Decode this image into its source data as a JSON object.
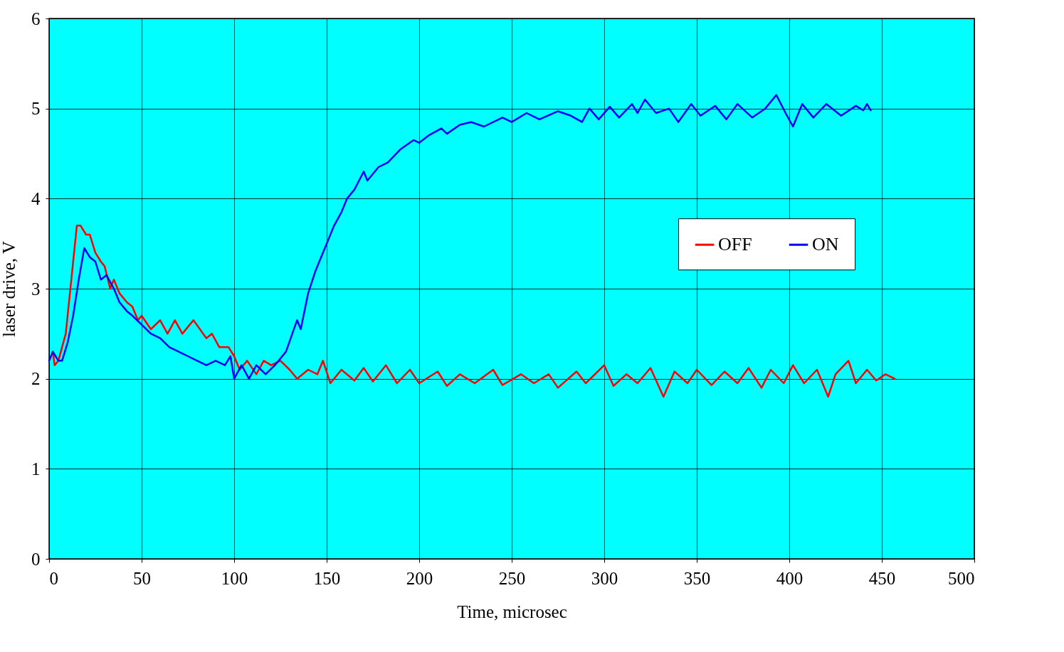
{
  "chart_data": {
    "type": "line",
    "xlabel": "Time, microsec",
    "ylabel": "laser drive, V",
    "xlim": [
      0,
      500
    ],
    "xticks": [
      0,
      50,
      100,
      150,
      200,
      250,
      300,
      350,
      400,
      450,
      500
    ],
    "ylim": [
      0,
      6
    ],
    "yticks": [
      0,
      1,
      2,
      3,
      4,
      5,
      6
    ],
    "grid": true,
    "legend": "right",
    "marker": "none",
    "line_style": "solid",
    "series": [
      {
        "name": "OFF",
        "color": "#ff0000",
        "x": [
          2,
          3,
          5,
          9,
          11,
          13,
          15,
          17,
          20,
          22,
          25,
          28,
          30,
          33,
          35,
          38,
          42,
          45,
          48,
          50,
          55,
          60,
          64,
          68,
          72,
          78,
          85,
          88,
          92,
          97,
          100,
          103,
          107,
          112,
          116,
          120,
          125,
          130,
          134,
          140,
          145,
          148,
          152,
          158,
          165,
          170,
          175,
          182,
          188,
          195,
          200,
          210,
          215,
          222,
          230,
          240,
          245,
          255,
          262,
          270,
          275,
          285,
          290,
          300,
          305,
          312,
          318,
          325,
          332,
          338,
          345,
          350,
          358,
          365,
          372,
          378,
          385,
          390,
          397,
          402,
          408,
          415,
          421,
          425,
          432,
          436,
          442,
          447,
          452,
          457
        ],
        "values": [
          2.3,
          2.15,
          2.2,
          2.5,
          2.9,
          3.3,
          3.7,
          3.7,
          3.6,
          3.6,
          3.4,
          3.3,
          3.25,
          3.0,
          3.1,
          2.95,
          2.85,
          2.8,
          2.65,
          2.7,
          2.55,
          2.65,
          2.5,
          2.65,
          2.5,
          2.65,
          2.45,
          2.5,
          2.35,
          2.35,
          2.25,
          2.1,
          2.2,
          2.05,
          2.2,
          2.15,
          2.2,
          2.1,
          2.0,
          2.1,
          2.05,
          2.2,
          1.95,
          2.1,
          1.98,
          2.12,
          1.97,
          2.15,
          1.95,
          2.1,
          1.95,
          2.08,
          1.92,
          2.05,
          1.95,
          2.1,
          1.93,
          2.05,
          1.95,
          2.05,
          1.9,
          2.08,
          1.95,
          2.15,
          1.92,
          2.05,
          1.95,
          2.12,
          1.8,
          2.08,
          1.95,
          2.1,
          1.93,
          2.08,
          1.95,
          2.12,
          1.9,
          2.1,
          1.95,
          2.15,
          1.95,
          2.1,
          1.8,
          2.05,
          2.2,
          1.95,
          2.1,
          1.98,
          2.05,
          2.0
        ]
      },
      {
        "name": "ON",
        "color": "#0000ff",
        "x": [
          0,
          2,
          5,
          7,
          10,
          13,
          16,
          19,
          22,
          25,
          28,
          31,
          35,
          38,
          42,
          45,
          50,
          55,
          60,
          65,
          70,
          75,
          80,
          85,
          90,
          95,
          98,
          100,
          104,
          108,
          112,
          117,
          122,
          128,
          134,
          136,
          140,
          144,
          146,
          150,
          154,
          158,
          161,
          165,
          170,
          172,
          178,
          183,
          190,
          197,
          200,
          205,
          212,
          215,
          222,
          228,
          235,
          245,
          250,
          258,
          265,
          275,
          282,
          288,
          292,
          297,
          303,
          308,
          315,
          318,
          322,
          328,
          335,
          340,
          347,
          352,
          360,
          366,
          372,
          380,
          387,
          393,
          398,
          402,
          407,
          413,
          420,
          428,
          436,
          440,
          442,
          444
        ],
        "values": [
          2.2,
          2.3,
          2.2,
          2.2,
          2.4,
          2.7,
          3.1,
          3.45,
          3.35,
          3.3,
          3.1,
          3.15,
          3.0,
          2.85,
          2.75,
          2.7,
          2.6,
          2.5,
          2.45,
          2.35,
          2.3,
          2.25,
          2.2,
          2.15,
          2.2,
          2.15,
          2.25,
          2.0,
          2.15,
          2.0,
          2.15,
          2.05,
          2.15,
          2.3,
          2.65,
          2.55,
          2.95,
          3.2,
          3.3,
          3.5,
          3.7,
          3.85,
          4.0,
          4.1,
          4.3,
          4.2,
          4.35,
          4.4,
          4.55,
          4.65,
          4.62,
          4.7,
          4.78,
          4.72,
          4.82,
          4.85,
          4.8,
          4.9,
          4.85,
          4.95,
          4.88,
          4.97,
          4.92,
          4.85,
          5.0,
          4.88,
          5.02,
          4.9,
          5.05,
          4.95,
          5.1,
          4.95,
          5.0,
          4.85,
          5.05,
          4.92,
          5.03,
          4.88,
          5.05,
          4.9,
          5.0,
          5.15,
          4.95,
          4.8,
          5.05,
          4.9,
          5.05,
          4.92,
          5.03,
          4.98,
          5.05,
          4.98
        ]
      }
    ]
  }
}
